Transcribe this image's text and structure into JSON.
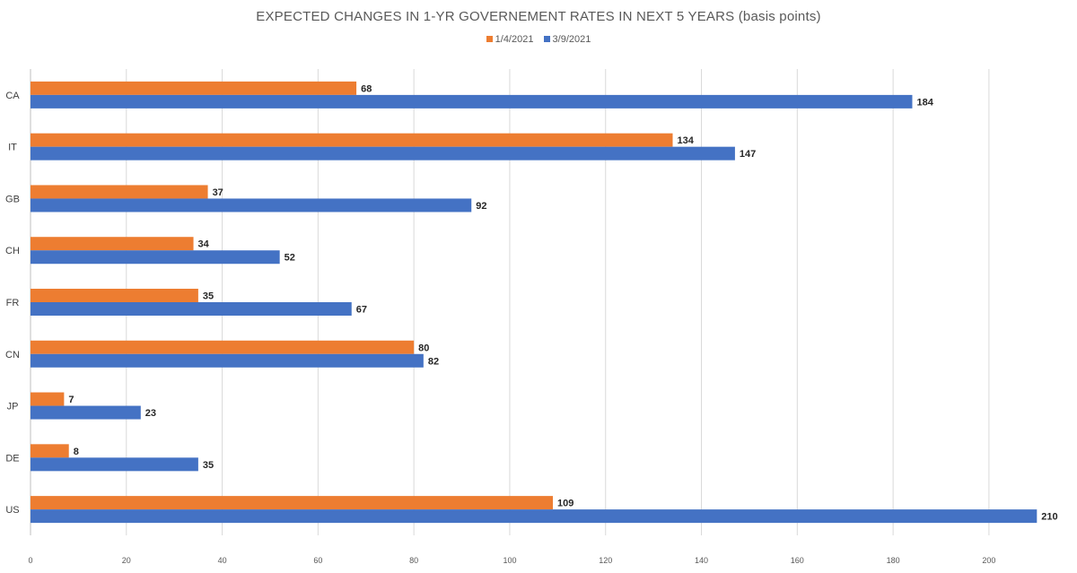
{
  "chart_data": {
    "type": "bar",
    "orientation": "horizontal",
    "title": "EXPECTED CHANGES IN 1-YR GOVERNEMENT RATES IN NEXT 5 YEARS (basis points)",
    "categories": [
      "CA",
      "IT",
      "GB",
      "CH",
      "FR",
      "CN",
      "JP",
      "DE",
      "US"
    ],
    "series": [
      {
        "name": "1/4/2021",
        "color": "#ED7D31",
        "values": [
          68,
          134,
          37,
          34,
          35,
          80,
          7,
          8,
          109
        ]
      },
      {
        "name": "3/9/2021",
        "color": "#4472C4",
        "values": [
          184,
          147,
          92,
          52,
          67,
          82,
          23,
          35,
          210
        ]
      }
    ],
    "xlim": [
      0,
      215
    ],
    "xticks": [
      0,
      20,
      40,
      60,
      80,
      100,
      120,
      140,
      160,
      180,
      200
    ],
    "legend_position": "top-center",
    "grid": "vertical",
    "data_labels": true
  }
}
